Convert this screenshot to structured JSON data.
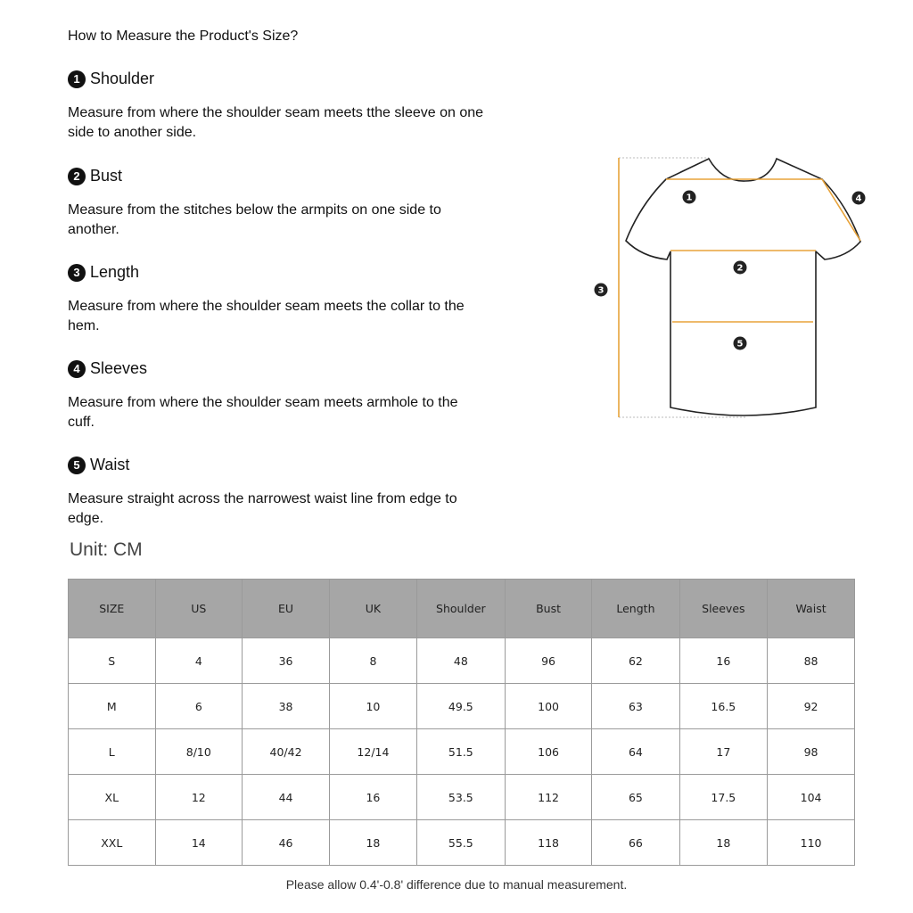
{
  "title": "How to Measure the Product's Size?",
  "sections": [
    {
      "num": "1",
      "name": "Shoulder",
      "lines": [
        "Measure from where the shoulder seam meets tthe sleeve on one",
        "side to another side."
      ]
    },
    {
      "num": "2",
      "name": "Bust",
      "lines": [
        "Measure from the stitches below the armpits on one side to",
        "another."
      ]
    },
    {
      "num": "3",
      "name": "Length",
      "lines": [
        "Measure from where the shoulder seam meets the collar to the",
        "hem."
      ]
    },
    {
      "num": "4",
      "name": "Sleeves",
      "lines": [
        "Measure from where the shoulder seam meets armhole to the",
        "cuff."
      ]
    },
    {
      "num": "5",
      "name": "Waist",
      "lines": [
        "Measure straight across the narrowest waist line from edge to",
        "edge."
      ]
    }
  ],
  "diagram": {
    "badges": [
      "1",
      "2",
      "3",
      "4",
      "5"
    ],
    "accent": "#e8a33a"
  },
  "unit": "Unit:  CM",
  "table": {
    "headers": [
      "SIZE",
      "US",
      "EU",
      "UK",
      "Shoulder",
      "Bust",
      "Length",
      "Sleeves",
      "Waist"
    ],
    "rows": [
      [
        "S",
        "4",
        "36",
        "8",
        "48",
        "96",
        "62",
        "16",
        "88"
      ],
      [
        "M",
        "6",
        "38",
        "10",
        "49.5",
        "100",
        "63",
        "16.5",
        "92"
      ],
      [
        "L",
        "8/10",
        "40/42",
        "12/14",
        "51.5",
        "106",
        "64",
        "17",
        "98"
      ],
      [
        "XL",
        "12",
        "44",
        "16",
        "53.5",
        "112",
        "65",
        "17.5",
        "104"
      ],
      [
        "XXL",
        "14",
        "46",
        "18",
        "55.5",
        "118",
        "66",
        "18",
        "110"
      ]
    ]
  },
  "footer": "Please allow 0.4'-0.8' difference due to manual measurement."
}
